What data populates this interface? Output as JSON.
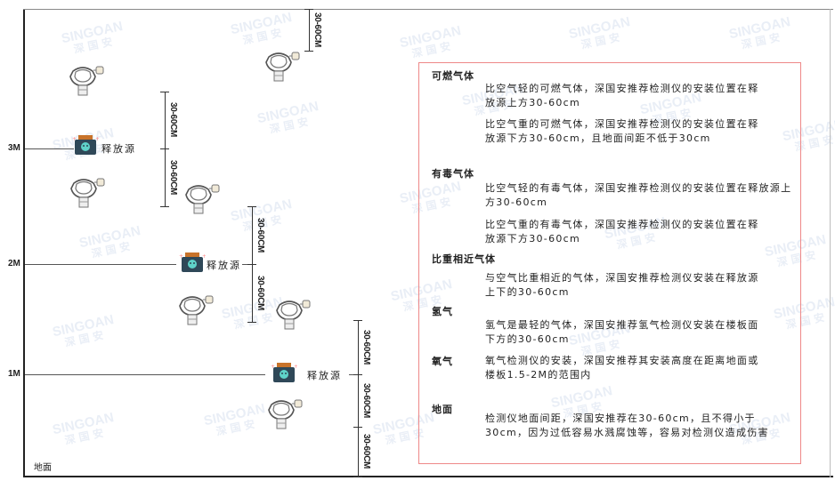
{
  "watermark": {
    "brand": "SINGOAN",
    "name": "深国安"
  },
  "levels": [
    {
      "label": "3M"
    },
    {
      "label": "2M"
    },
    {
      "label": "1M"
    }
  ],
  "floor_label": "地面",
  "source_label": "释放源",
  "dimension_label": "30-60CM",
  "panel": {
    "sections": [
      {
        "title": "可燃气体",
        "paragraphs": [
          "比空气轻的可燃气体，深国安推荐检测仪的安装位置在释放源上方30-60cm",
          "比空气重的可燃气体，深国安推荐检测仪的安装位置在释放源下方30-60cm，且地面间距不低于30cm"
        ]
      },
      {
        "title": "有毒气体",
        "paragraphs": [
          "比空气轻的有毒气体，深国安推荐检测仪的安装位置在释放源上方30-60cm",
          "比空气重的有毒气体，深国安推荐检测仪的安装位置在释放源下方30-60cm"
        ]
      },
      {
        "title": "比重相近气体",
        "paragraphs": [
          "与空气比重相近的气体，深国安推荐检测仪安装在释放源上下的30-60cm"
        ]
      },
      {
        "title": "氢气",
        "paragraphs": [
          "氢气是最轻的气体，深国安推荐氢气检测仪安装在楼板面下方的30-60cm"
        ]
      },
      {
        "title": "氧气",
        "paragraphs": [
          "氧气检测仪的安装，深国安推荐其安装高度在距离地面或楼板1.5-2M的范围内"
        ]
      },
      {
        "title": "地面",
        "paragraphs": [
          "检测仪地面间距，深国安推荐在30-60cm，且不得小于30cm，因为过低容易水溅腐蚀等，容易对检测仪造成伤害"
        ]
      }
    ]
  },
  "colors": {
    "panel_border": "#ee8888",
    "source_body": "#2f4858",
    "source_cap": "#c8732a",
    "source_face": "#5fd3c9"
  }
}
